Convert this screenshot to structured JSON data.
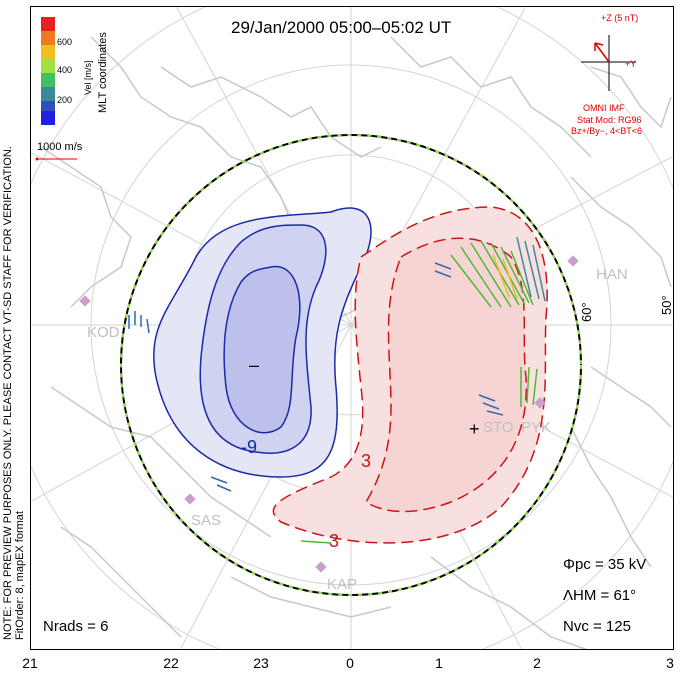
{
  "title": "29/Jan/2000 05:00–05:02 UT",
  "side_note": {
    "line1": "NOTE: FOR PREVIEW PURPOSES ONLY. PLEASE CONTACT VT-SD STAFF FOR VERIFICATION.",
    "line2": "FitOrder: 8, mapEX format"
  },
  "coord_label": "MLT coordinates",
  "colorbar": {
    "title": "Vel [m/s]",
    "ticks": [
      "600",
      "400",
      "200"
    ],
    "colors": [
      "#e62020",
      "#f07820",
      "#f0c020",
      "#a0e040",
      "#40c060",
      "#3a8a9a",
      "#3050b8",
      "#2020e0"
    ]
  },
  "scale_label": "1000 m/s",
  "imf": {
    "z_label": "+Z (5 nT)",
    "y_label": "+Y",
    "source": "OMNI IMF",
    "model_line1": "Stat Mod: RG96",
    "model_line2": "Bz+/By−, 4<BT<6"
  },
  "latitude_labels": [
    "60°",
    "50°"
  ],
  "stations": [
    "KOD",
    "HAN",
    "STO",
    "PYK",
    "SAS",
    "KAP"
  ],
  "contour_labels": {
    "neg": "-9",
    "pos_a": "3",
    "pos_b": "3"
  },
  "extrema": {
    "min": "–",
    "max": "+"
  },
  "stats": {
    "phi_pc": "Φpc = 35 kV",
    "lambda_hm": "ΛHM = 61°",
    "n_vc": "Nvc = 125",
    "n_rads": "Nrads = 6"
  },
  "mlt_labels": [
    "21",
    "22",
    "23",
    "0",
    "1",
    "2",
    "3"
  ],
  "colors": {
    "negative": "#1a2aa8",
    "positive": "#cc1414",
    "boundary": "#000000",
    "coast": "#c8c8c8",
    "grid": "#d4d4d4"
  }
}
